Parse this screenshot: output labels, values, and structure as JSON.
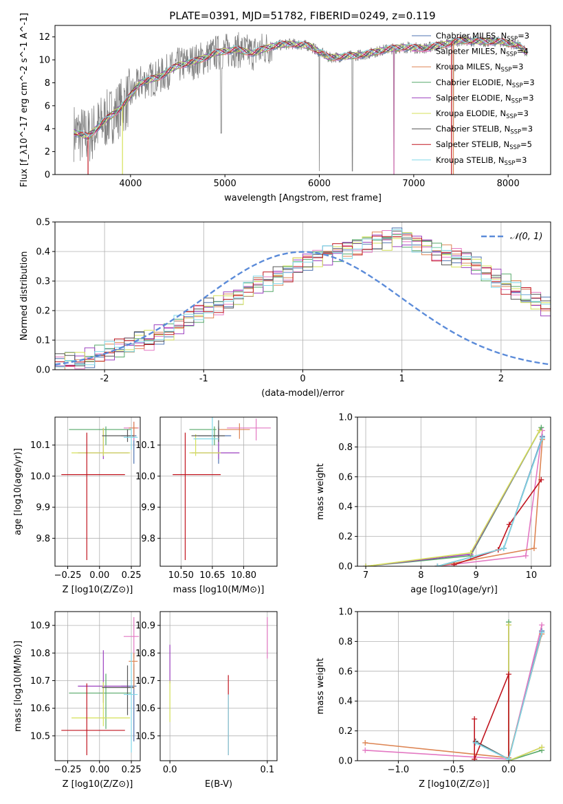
{
  "figure": {
    "title": "PLATE=0391, MJD=51782, FIBERID=0249, z=0.119"
  },
  "models": [
    {
      "name": "Chabrier MILES",
      "nssp": "3",
      "color": "#4c72b0"
    },
    {
      "name": "Salpeter MILES",
      "nssp": "4",
      "color": "#e377c2"
    },
    {
      "name": "Kroupa MILES",
      "nssp": "3",
      "color": "#dd8452"
    },
    {
      "name": "Chabrier ELODIE",
      "nssp": "3",
      "color": "#55a868"
    },
    {
      "name": "Salpeter ELODIE",
      "nssp": "3",
      "color": "#9b3fbf"
    },
    {
      "name": "Kroupa ELODIE",
      "nssp": "3",
      "color": "#d4e157"
    },
    {
      "name": "Chabrier STELIB",
      "nssp": "3",
      "color": "#555555"
    },
    {
      "name": "Salpeter STELIB",
      "nssp": "5",
      "color": "#c0141e"
    },
    {
      "name": "Kroupa STELIB",
      "nssp": "3",
      "color": "#80d8e8"
    }
  ],
  "chart_data": [
    {
      "id": "spectrum",
      "type": "line",
      "xlabel": "wavelength [Angstrom, rest frame]",
      "ylabel": "Flux [f_λ10^-17 erg cm^-2 s^-1 A^-1]",
      "xlim": [
        3200,
        8450
      ],
      "ylim": [
        0,
        13
      ],
      "xticks": [
        4000,
        5000,
        6000,
        7000,
        8000
      ],
      "yticks": [
        0,
        2,
        4,
        6,
        8,
        10,
        12
      ],
      "legend": "top-right",
      "continuum": {
        "x": [
          3400,
          3550,
          3700,
          3850,
          3950,
          4100,
          4300,
          4500,
          4700,
          4900,
          5100,
          5300,
          5500,
          5700,
          5900,
          6100,
          6300,
          6500,
          6700,
          6900,
          7100,
          7300,
          7500,
          7700,
          7900,
          8100,
          8200
        ],
        "y": [
          3.7,
          3.3,
          4.5,
          5.5,
          6.3,
          8.0,
          8.5,
          9.5,
          9.9,
          10.6,
          10.9,
          10.6,
          11.2,
          11.4,
          11.2,
          10.2,
          10.3,
          10.5,
          10.9,
          11.1,
          11.0,
          11.3,
          11.7,
          11.6,
          11.6,
          11.3,
          10.6
        ]
      },
      "data_range": [
        3400,
        8200
      ]
    },
    {
      "id": "residuals",
      "type": "histogram",
      "xlabel": "(data-model)/error",
      "ylabel": "Normed distribution",
      "xlim": [
        -2.5,
        2.5
      ],
      "ylim": [
        0,
        0.5
      ],
      "xticks": [
        -2,
        -1,
        0,
        1,
        2
      ],
      "yticks": [
        0.0,
        0.1,
        0.2,
        0.3,
        0.4,
        0.5
      ],
      "bin_width": 0.1,
      "reference_label": "𝒩(0, 1)",
      "reference_color": "#5b8bd9",
      "base_shape": [
        0.02,
        0.03,
        0.03,
        0.04,
        0.05,
        0.06,
        0.07,
        0.08,
        0.1,
        0.1,
        0.12,
        0.13,
        0.15,
        0.17,
        0.19,
        0.21,
        0.22,
        0.24,
        0.25,
        0.27,
        0.29,
        0.3,
        0.32,
        0.33,
        0.36,
        0.37,
        0.38,
        0.39,
        0.4,
        0.41,
        0.42,
        0.43,
        0.44,
        0.44,
        0.45,
        0.44,
        0.43,
        0.42,
        0.4,
        0.39,
        0.38,
        0.37,
        0.35,
        0.33,
        0.31,
        0.29,
        0.27,
        0.25,
        0.23,
        0.21,
        0.19,
        0.17,
        0.16,
        0.14,
        0.12,
        0.11,
        0.09,
        0.08,
        0.07,
        0.06,
        0.05,
        0.05,
        0.04,
        0.03,
        0.03,
        0.02,
        0.02,
        0.02,
        0.02,
        0.02,
        0.02,
        0.02,
        0.02,
        0.02,
        0.02
      ],
      "shape_start": -2.5
    },
    {
      "id": "age-vs-Z",
      "type": "errorbar",
      "xlabel": "Z [log10(Z/Z⊙)]",
      "ylabel": "age  [log10(age/yr)]",
      "xlim": [
        -0.35,
        0.32
      ],
      "ylim": [
        9.71,
        10.19
      ],
      "xticks": [
        -0.25,
        0.0,
        0.25
      ],
      "xticklabels": [
        "−0.25",
        "0.00",
        "0.25"
      ],
      "yticks": [
        9.8,
        9.9,
        10.0,
        10.1
      ],
      "points": [
        {
          "m": 0,
          "x": 0.27,
          "y": 10.13,
          "xerr": [
            0.1,
            0.02
          ],
          "yerr": [
            0.09,
            0.03
          ]
        },
        {
          "m": 1,
          "x": 0.27,
          "y": 10.155,
          "xerr": [
            0.08,
            0.04
          ],
          "yerr": [
            0.04,
            0.02
          ]
        },
        {
          "m": 2,
          "x": 0.27,
          "y": 10.155,
          "xerr": [
            0.04,
            0.03
          ],
          "yerr": [
            0.03,
            0.02
          ]
        },
        {
          "m": 3,
          "x": 0.05,
          "y": 10.15,
          "xerr": [
            0.29,
            0.2
          ],
          "yerr": [
            0.05,
            0.01
          ]
        },
        {
          "m": 4,
          "x": 0.03,
          "y": 10.075,
          "xerr": [
            0.2,
            0.2
          ],
          "yerr": [
            0.02,
            0.08
          ]
        },
        {
          "m": 5,
          "x": 0.03,
          "y": 10.075,
          "xerr": [
            0.25,
            0.21
          ],
          "yerr": [
            0.01,
            0.08
          ]
        },
        {
          "m": 6,
          "x": 0.22,
          "y": 10.13,
          "xerr": [
            0.2,
            0.05
          ],
          "yerr": [
            0.02,
            0.02
          ]
        },
        {
          "m": 7,
          "x": -0.1,
          "y": 10.005,
          "xerr": [
            0.2,
            0.3
          ],
          "yerr": [
            0.275,
            0.135
          ]
        },
        {
          "m": 8,
          "x": 0.25,
          "y": 10.125,
          "xerr": [
            0.06,
            0.05
          ],
          "yerr": [
            0.04,
            0.03
          ]
        }
      ]
    },
    {
      "id": "age-vs-mass",
      "type": "errorbar",
      "xlabel": "mass [log10(M/M⊙)]",
      "ylabel": "",
      "xlim": [
        10.4,
        10.96
      ],
      "ylim": [
        9.71,
        10.19
      ],
      "xticks": [
        10.5,
        10.65,
        10.8
      ],
      "xticklabels": [
        "10.50",
        "10.65",
        "10.80"
      ],
      "yticks": [
        9.8,
        9.9,
        10.0,
        10.1
      ],
      "points": [
        {
          "m": 0,
          "x": 10.68,
          "y": 10.13,
          "xerr": [
            0.1,
            0.06
          ],
          "yerr": [
            0.09,
            0.03
          ]
        },
        {
          "m": 1,
          "x": 10.86,
          "y": 10.155,
          "xerr": [
            0.14,
            0.07
          ],
          "yerr": [
            0.04,
            0.03
          ]
        },
        {
          "m": 2,
          "x": 10.78,
          "y": 10.15,
          "xerr": [
            0.1,
            0.05
          ],
          "yerr": [
            0.03,
            0.02
          ]
        },
        {
          "m": 3,
          "x": 10.66,
          "y": 10.15,
          "xerr": [
            0.12,
            0.01
          ],
          "yerr": [
            0.05,
            0.01
          ]
        },
        {
          "m": 4,
          "x": 10.68,
          "y": 10.075,
          "xerr": [
            0.13,
            0.1
          ],
          "yerr": [
            0.02,
            0.08
          ]
        },
        {
          "m": 5,
          "x": 10.57,
          "y": 10.075,
          "xerr": [
            0.03,
            0.12
          ],
          "yerr": [
            0.01,
            0.06
          ]
        },
        {
          "m": 6,
          "x": 10.68,
          "y": 10.13,
          "xerr": [
            0.13,
            0.03
          ],
          "yerr": [
            0.02,
            0.05
          ]
        },
        {
          "m": 7,
          "x": 10.52,
          "y": 10.005,
          "xerr": [
            0.06,
            0.17
          ],
          "yerr": [
            0.275,
            0.135
          ]
        },
        {
          "m": 8,
          "x": 10.65,
          "y": 10.12,
          "xerr": [
            0.09,
            0.03
          ],
          "yerr": [
            0.02,
            0.08
          ]
        }
      ]
    },
    {
      "id": "weight-vs-age",
      "type": "line",
      "xlabel": "age  [log10(age/yr)]",
      "ylabel": "mass weight",
      "xlim": [
        6.85,
        10.35
      ],
      "ylim": [
        0,
        1.0
      ],
      "xticks": [
        7,
        8,
        9,
        10
      ],
      "xticklabels": [
        "7",
        "8",
        "9",
        "10"
      ],
      "yticks": [
        0,
        0.2,
        0.4,
        0.6,
        0.8,
        1.0
      ],
      "series": [
        {
          "m": 0,
          "x": [
            8.3,
            9.5,
            10.2
          ],
          "y": [
            0.0,
            0.12,
            0.87
          ]
        },
        {
          "m": 1,
          "x": [
            8.3,
            9.9,
            10.2
          ],
          "y": [
            0.0,
            0.07,
            0.91
          ]
        },
        {
          "m": 2,
          "x": [
            8.3,
            10.05,
            10.2
          ],
          "y": [
            0.0,
            0.12,
            0.85
          ]
        },
        {
          "m": 3,
          "x": [
            7.0,
            8.9,
            10.18
          ],
          "y": [
            0.0,
            0.07,
            0.93
          ]
        },
        {
          "m": 4,
          "x": [
            7.0,
            8.9,
            10.15
          ],
          "y": [
            0.0,
            0.08,
            0.91
          ]
        },
        {
          "m": 5,
          "x": [
            7.0,
            8.9,
            10.15
          ],
          "y": [
            0.0,
            0.09,
            0.91
          ]
        },
        {
          "m": 6,
          "x": [
            8.3,
            9.5,
            10.2
          ],
          "y": [
            0.0,
            0.12,
            0.86
          ]
        },
        {
          "m": 7,
          "x": [
            8.6,
            9.4,
            9.6,
            10.18
          ],
          "y": [
            0.01,
            0.11,
            0.28,
            0.58
          ]
        },
        {
          "m": 8,
          "x": [
            8.3,
            9.5,
            10.2
          ],
          "y": [
            0.0,
            0.12,
            0.86
          ]
        }
      ]
    },
    {
      "id": "mass-vs-Z",
      "type": "errorbar",
      "xlabel": "Z [log10(Z/Z⊙)]",
      "ylabel": "mass [log10(M/M⊙)]",
      "xlim": [
        -0.35,
        0.32
      ],
      "ylim": [
        10.41,
        10.95
      ],
      "xticks": [
        -0.25,
        0.0,
        0.25
      ],
      "xticklabels": [
        "−0.25",
        "0.00",
        "0.25"
      ],
      "yticks": [
        10.5,
        10.6,
        10.7,
        10.8,
        10.9
      ],
      "points": [
        {
          "m": 0,
          "x": 0.27,
          "y": 10.68,
          "xerr": [
            0.1,
            0.02
          ],
          "yerr": [
            0.2,
            0.08
          ]
        },
        {
          "m": 1,
          "x": 0.27,
          "y": 10.86,
          "xerr": [
            0.08,
            0.04
          ],
          "yerr": [
            0.08,
            0.07
          ]
        },
        {
          "m": 2,
          "x": 0.27,
          "y": 10.77,
          "xerr": [
            0.04,
            0.03
          ],
          "yerr": [
            0.1,
            0.03
          ]
        },
        {
          "m": 3,
          "x": 0.05,
          "y": 10.655,
          "xerr": [
            0.29,
            0.2
          ],
          "yerr": [
            0.13,
            0.07
          ]
        },
        {
          "m": 4,
          "x": 0.03,
          "y": 10.68,
          "xerr": [
            0.2,
            0.2
          ],
          "yerr": [
            0.06,
            0.13
          ]
        },
        {
          "m": 5,
          "x": 0.03,
          "y": 10.565,
          "xerr": [
            0.25,
            0.21
          ],
          "yerr": [
            0.03,
            0.13
          ]
        },
        {
          "m": 6,
          "x": 0.22,
          "y": 10.675,
          "xerr": [
            0.2,
            0.05
          ],
          "yerr": [
            0.1,
            0.08
          ]
        },
        {
          "m": 7,
          "x": -0.1,
          "y": 10.52,
          "xerr": [
            0.2,
            0.3
          ],
          "yerr": [
            0.09,
            0.17
          ]
        },
        {
          "m": 8,
          "x": 0.25,
          "y": 10.65,
          "xerr": [
            0.06,
            0.05
          ],
          "yerr": [
            0.21,
            0.15
          ]
        }
      ]
    },
    {
      "id": "mass-vs-ebv",
      "type": "errorbar",
      "xlabel": "E(B-V)",
      "ylabel": "",
      "xlim": [
        -0.01,
        0.11
      ],
      "ylim": [
        10.41,
        10.95
      ],
      "xticks": [
        0.0,
        0.1
      ],
      "xticklabels": [
        "0.0",
        "0.1"
      ],
      "yticks": [
        10.5,
        10.6,
        10.7,
        10.8,
        10.9
      ],
      "points": [
        {
          "m": 1,
          "x": 0.1,
          "y": 10.86,
          "xerr": [
            0,
            0
          ],
          "yerr": [
            0.08,
            0.07
          ]
        },
        {
          "m": 4,
          "x": 0.0,
          "y": 10.75,
          "xerr": [
            0,
            0
          ],
          "yerr": [
            0.06,
            0.08
          ]
        },
        {
          "m": 5,
          "x": 0.0,
          "y": 10.62,
          "xerr": [
            0,
            0
          ],
          "yerr": [
            0.07,
            0.08
          ]
        },
        {
          "m": 7,
          "x": 0.06,
          "y": 10.6,
          "xerr": [
            0,
            0
          ],
          "yerr": [
            0.17,
            0.12
          ]
        },
        {
          "m": 8,
          "x": 0.06,
          "y": 10.57,
          "xerr": [
            0,
            0
          ],
          "yerr": [
            0.14,
            0.08
          ]
        }
      ]
    },
    {
      "id": "weight-vs-Z",
      "type": "line",
      "xlabel": "Z [log10(Z/Z⊙)]",
      "ylabel": "mass weight",
      "xlim": [
        -1.37,
        0.38
      ],
      "ylim": [
        0,
        1.0
      ],
      "xticks": [
        -1.0,
        -0.5,
        0.0
      ],
      "xticklabels": [
        "−1.0",
        "−0.5",
        "0.0"
      ],
      "yticks": [
        0,
        0.2,
        0.4,
        0.6,
        0.8,
        1.0
      ],
      "series": [
        {
          "m": 0,
          "x": [
            -0.3,
            0.0,
            0.3
          ],
          "y": [
            0.12,
            0.01,
            0.87
          ]
        },
        {
          "m": 1,
          "x": [
            -1.3,
            0.0,
            0.3
          ],
          "y": [
            0.07,
            0.01,
            0.91
          ]
        },
        {
          "m": 2,
          "x": [
            -1.3,
            0.0,
            0.3
          ],
          "y": [
            0.12,
            0.02,
            0.85
          ]
        },
        {
          "m": 3,
          "x": [
            0.0,
            0.0,
            0.3
          ],
          "y": [
            0.93,
            0.0,
            0.07
          ]
        },
        {
          "m": 4,
          "x": [
            0.0,
            0.0,
            0.3
          ],
          "y": [
            0.91,
            0.0,
            0.09
          ]
        },
        {
          "m": 5,
          "x": [
            0.0,
            0.0,
            0.3
          ],
          "y": [
            0.91,
            0.0,
            0.09
          ]
        },
        {
          "m": 6,
          "x": [
            -0.3,
            0.0,
            0.3
          ],
          "y": [
            0.13,
            0.01,
            0.86
          ]
        },
        {
          "m": 7,
          "x": [
            -0.31,
            -0.31,
            0.0,
            0.0
          ],
          "y": [
            0.28,
            0.01,
            0.58,
            0.01
          ]
        },
        {
          "m": 8,
          "x": [
            -0.3,
            0.0,
            0.3
          ],
          "y": [
            0.12,
            0.01,
            0.86
          ]
        }
      ]
    }
  ]
}
